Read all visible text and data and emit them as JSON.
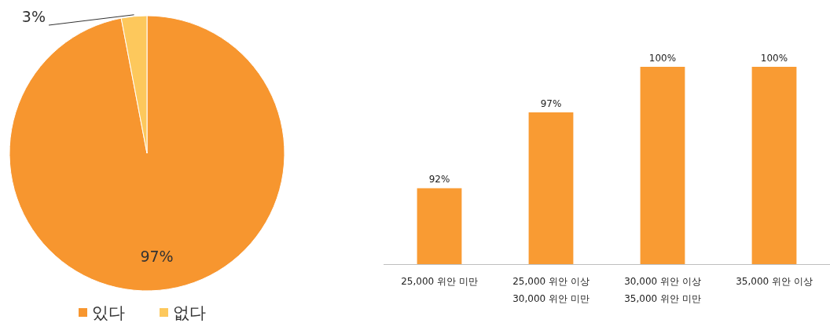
{
  "chart_data": [
    {
      "type": "pie",
      "categories": [
        "있다",
        "없다"
      ],
      "values": [
        97,
        3
      ],
      "colors": [
        "#f7962f",
        "#fdc85c"
      ],
      "value_labels": [
        "97%",
        "3%"
      ],
      "legend": "bottom"
    },
    {
      "type": "bar",
      "categories": [
        "25,000 위안 미만",
        "25,000 위안 이상\n30,000 위안 미만",
        "30,000 위안 이상\n35,000 위안 미만",
        "35,000 위안 이상"
      ],
      "values": [
        92,
        97,
        100,
        100
      ],
      "color": "#f99b33",
      "value_labels": [
        "92%",
        "97%",
        "100%",
        "100%"
      ],
      "ylim": [
        87,
        100
      ],
      "tick_labels": "x"
    }
  ]
}
